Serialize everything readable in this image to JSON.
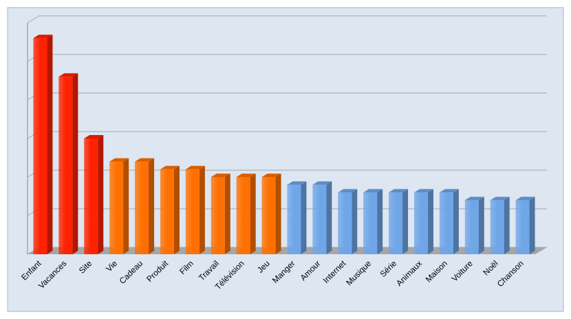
{
  "chart_data": {
    "type": "bar3d",
    "categories": [
      "Enfant",
      "Vacances",
      "Site",
      "Vie",
      "Cadeau",
      "Produit",
      "Film",
      "Travail",
      "Télévision",
      "Jeu",
      "Manger",
      "Amour",
      "Internet",
      "Musique",
      "Série",
      "Animaux",
      "Maison",
      "Voiture",
      "Noël",
      "Chanson"
    ],
    "values": [
      5.6,
      4.6,
      3.0,
      2.4,
      2.4,
      2.2,
      2.2,
      2.0,
      2.0,
      2.0,
      1.8,
      1.8,
      1.6,
      1.6,
      1.6,
      1.6,
      1.6,
      1.4,
      1.4,
      1.4
    ],
    "colors": [
      "#ff2200",
      "#ff2200",
      "#ff2200",
      "#ff7000",
      "#ff7000",
      "#ff7000",
      "#ff7000",
      "#ff7000",
      "#ff7000",
      "#ff7000",
      "#6fa6e8",
      "#6fa6e8",
      "#6fa6e8",
      "#6fa6e8",
      "#6fa6e8",
      "#6fa6e8",
      "#6fa6e8",
      "#6fa6e8",
      "#6fa6e8",
      "#6fa6e8"
    ],
    "ylim": [
      0,
      6
    ],
    "yticks": [
      0,
      1,
      2,
      3,
      4,
      5,
      6
    ],
    "grid": true
  }
}
